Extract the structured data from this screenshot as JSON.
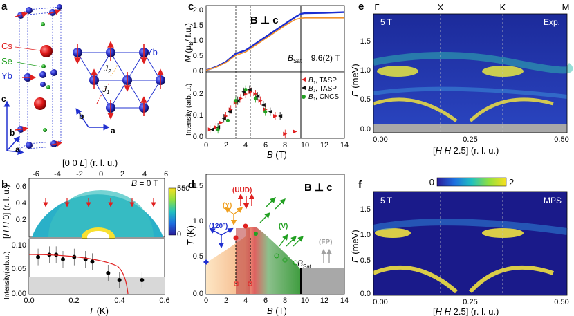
{
  "panels": {
    "a": {
      "letter": "a",
      "atoms": [
        "Cs",
        "Se",
        "Yb",
        "Yb"
      ],
      "axes": [
        "c",
        "b",
        "a"
      ],
      "lattice_axes": [
        "b",
        "a"
      ],
      "exchange": [
        "J",
        "1",
        "J",
        "2"
      ]
    },
    "b": {
      "letter": "b",
      "top_xlabel": [
        "[0  0  ",
        "L",
        "] (r. l. u.)"
      ],
      "top_ylabel": [
        "[",
        "H H",
        " 0] (r. l. u.)"
      ],
      "field_label": [
        "B",
        " = 0 T"
      ],
      "colorbar_ticks": [
        "550",
        "0"
      ],
      "top_xticks": [
        "-6",
        "-4",
        "-2",
        "0",
        "2",
        "4",
        "6"
      ],
      "top_yticks": [
        "0.6",
        "0.4",
        "0.2"
      ],
      "bottom_ylabel": "Intensity(arb.u.)",
      "bottom_xlabel": [
        "T",
        " (K)"
      ],
      "bottom_xticks": [
        "0.0",
        "0.2",
        "0.4",
        "0.6"
      ],
      "bottom_yticks": [
        "0.10",
        "0.05",
        "0.00"
      ]
    },
    "c": {
      "letter": "c",
      "field_dir": "B ⊥ c",
      "top_ylabel": [
        "M",
        " (μ",
        "B",
        "/ f.u.)"
      ],
      "top_yticks": [
        "2.0",
        "1.5",
        "1.0",
        "0.5",
        "0.0"
      ],
      "bsat_label": [
        "B",
        "Sat",
        " = 9.6(2) T"
      ],
      "legend": [
        {
          "sub": "↑",
          "text": ", TASP",
          "color": "#e02020"
        },
        {
          "sub": "↓",
          "text": ", TASP",
          "color": "#111111"
        },
        {
          "sub": "↑",
          "text": ", CNCS",
          "color": "#22a022"
        }
      ],
      "legend_symbol": "B",
      "bottom_ylabel": "Intensity (arb. u.)",
      "bottom_yticks": [
        "0.2",
        "0.1",
        "0.0"
      ],
      "xlabel": [
        "B",
        " (T)"
      ],
      "xticks": [
        "0",
        "2",
        "4",
        "6",
        "8",
        "10",
        "12",
        "14"
      ]
    },
    "d": {
      "letter": "d",
      "field_dir": "B ⊥ c",
      "ylabel": [
        "T",
        " (K)"
      ],
      "yticks": [
        "1.5",
        "1.0",
        "0.5",
        "0.0"
      ],
      "xlabel": [
        "B",
        " (T)"
      ],
      "xticks": [
        "0",
        "2",
        "4",
        "6",
        "8",
        "10",
        "12",
        "14"
      ],
      "phases": [
        "(120°)",
        "(Y)",
        "(UUD)",
        "(V)",
        "(FP)"
      ],
      "bsat": [
        "B",
        "Sat"
      ]
    },
    "e": {
      "letter": "e",
      "top_labels": [
        "Γ",
        "X",
        "K",
        "M"
      ],
      "field": "5 T",
      "tag": "Exp.",
      "ylabel": [
        "E",
        " (meV)"
      ],
      "yticks": [
        "1.5",
        "1.0",
        "0.5",
        "0.0"
      ],
      "xticks": [
        "0.00",
        "0.25",
        "0.50"
      ],
      "xlabel": [
        "[",
        "H  H",
        " 2.5] (r. l. u.)"
      ]
    },
    "f": {
      "letter": "f",
      "colorbar_ticks": [
        "0",
        "2"
      ],
      "field": "5 T",
      "tag": "MPS",
      "ylabel": [
        "E",
        " (meV)"
      ],
      "yticks": [
        "1.5",
        "1.0",
        "0.5",
        "0.0"
      ],
      "xticks": [
        "0.00",
        "0.25",
        "0.50"
      ],
      "xlabel": [
        "[",
        "H  H",
        " 2.5] (r. l. u.)"
      ]
    }
  },
  "colors": {
    "magnetization_blue": "#1a2dd0",
    "magnetization_orange": "#f0902a",
    "up_red": "#e02020",
    "green": "#22a022",
    "yellow_phase": "#f0a020",
    "blue_phase": "#2030d0",
    "fp_gray": "#a0a0a0"
  },
  "chart_data": [
    {
      "type": "line",
      "title": "",
      "xlabel": "B (T)",
      "ylabel": "M (μB / f.u.)",
      "xlim": [
        0,
        14
      ],
      "ylim": [
        0,
        2
      ],
      "series": [
        {
          "values": [
            [
              0,
              0.05
            ],
            [
              1,
              0.15
            ],
            [
              2,
              0.3
            ],
            [
              3,
              0.55
            ],
            [
              4,
              0.65
            ],
            [
              5,
              0.85
            ],
            [
              6,
              1.05
            ],
            [
              7,
              1.25
            ],
            [
              8,
              1.45
            ],
            [
              9,
              1.65
            ],
            [
              9.6,
              1.75
            ],
            [
              10,
              1.77
            ],
            [
              12,
              1.78
            ],
            [
              14,
              1.8
            ]
          ]
        },
        {
          "values": [
            [
              0,
              0.05
            ],
            [
              1,
              0.14
            ],
            [
              2,
              0.28
            ],
            [
              3,
              0.5
            ],
            [
              4,
              0.6
            ],
            [
              5,
              0.8
            ],
            [
              6,
              1.0
            ],
            [
              7,
              1.2
            ],
            [
              8,
              1.4
            ],
            [
              9,
              1.58
            ],
            [
              9.6,
              1.62
            ],
            [
              10,
              1.63
            ],
            [
              12,
              1.63
            ],
            [
              14,
              1.63
            ]
          ]
        }
      ]
    },
    {
      "type": "scatter",
      "title": "",
      "xlabel": "B (T)",
      "ylabel": "Intensity (arb. u.)",
      "xlim": [
        0,
        14
      ],
      "ylim": [
        0,
        0.3
      ],
      "series": [
        {
          "name": "B↑, TASP",
          "x": [
            0.4,
            1,
            1.5,
            2,
            2.5,
            3,
            3.5,
            4,
            4.5,
            5,
            5.5,
            6,
            7,
            8,
            9
          ],
          "y": [
            0.04,
            0.05,
            0.07,
            0.1,
            0.13,
            0.16,
            0.18,
            0.2,
            0.21,
            0.2,
            0.17,
            0.13,
            0.1,
            0.02,
            0.03
          ]
        },
        {
          "name": "B↓, TASP",
          "x": [
            0.6,
            1.2,
            1.8,
            2.4,
            3.2,
            3.8,
            4.4,
            5.2,
            5.8,
            6.5,
            7.5
          ],
          "y": [
            0.04,
            0.05,
            0.09,
            0.12,
            0.17,
            0.21,
            0.22,
            0.19,
            0.15,
            0.12,
            0.1
          ]
        },
        {
          "name": "B↑, CNCS",
          "x": [
            1.2,
            2.2,
            3,
            4,
            5,
            6
          ],
          "y": [
            0.04,
            0.08,
            0.17,
            0.22,
            0.18,
            0.12
          ]
        }
      ]
    },
    {
      "type": "scatter",
      "title": "",
      "xlabel": "T (K)",
      "ylabel": "Intensity(arb.u.)",
      "xlim": [
        0,
        0.6
      ],
      "ylim": [
        0,
        0.12
      ],
      "series": [
        {
          "x": [
            0.04,
            0.09,
            0.12,
            0.15,
            0.2,
            0.25,
            0.28,
            0.35,
            0.4,
            0.5
          ],
          "y": [
            0.08,
            0.085,
            0.085,
            0.075,
            0.08,
            0.075,
            0.07,
            0.045,
            0.03,
            0.03
          ]
        }
      ]
    },
    {
      "type": "scatter",
      "title": "",
      "xlabel": "B (T)",
      "ylabel": "T (K)",
      "xlim": [
        0,
        14
      ],
      "ylim": [
        0,
        1.5
      ],
      "series": [
        {
          "x": [
            0,
            3,
            4,
            5,
            6,
            7,
            8,
            9.6
          ],
          "y": [
            0.4,
            0.7,
            0.75,
            0.72,
            0.6,
            0.5,
            0.4,
            0.3
          ]
        }
      ]
    }
  ]
}
